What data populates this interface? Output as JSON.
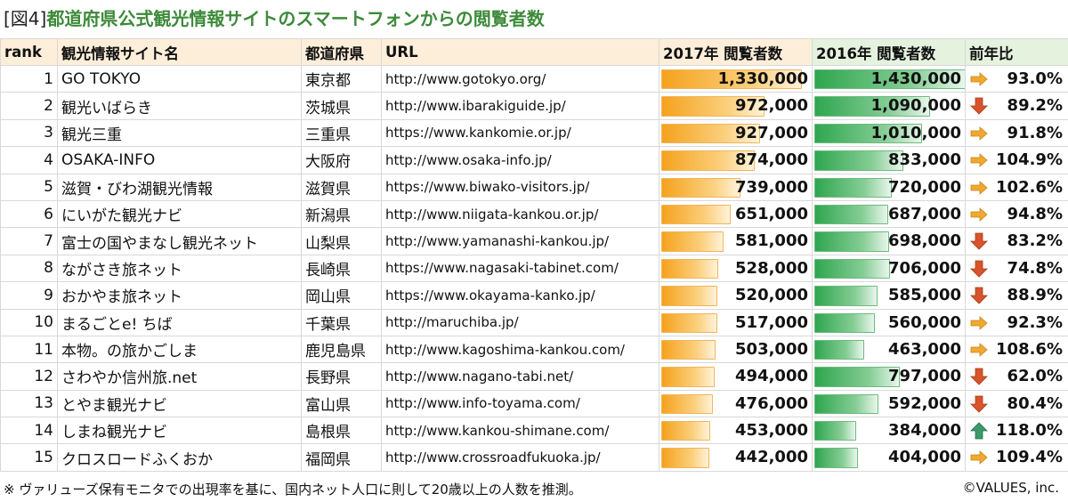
{
  "title": {
    "fig": "[図4]",
    "main": "都道府県公式観光情報サイトのスマートフォンからの閲覧者数"
  },
  "headers": {
    "rank": "rank",
    "name": "観光情報サイト名",
    "pref": "都道府県",
    "url": "URL",
    "y2017": "2017年 閲覧者数",
    "y2016": "2016年 閲覧者数",
    "ratio": "前年比"
  },
  "colors": {
    "title": "#3d8a3a",
    "bar2017": "#f5a21d",
    "bar2016": "#2fa64f",
    "up": "#3a9a6a",
    "flat": "#f0a830",
    "down": "#d9542b"
  },
  "scale_max": 1430000,
  "rows": [
    {
      "rank": "1",
      "name": "GO TOKYO",
      "pref": "東京都",
      "url": "http://www.gotokyo.org/",
      "v2017": 1330000,
      "v2017_label": "1,330,000",
      "v2016": 1430000,
      "v2016_label": "1,430,000",
      "ratio": "93.0%",
      "trend": "flat"
    },
    {
      "rank": "2",
      "name": "観光いばらき",
      "pref": "茨城県",
      "url": "http://www.ibarakiguide.jp/",
      "v2017": 972000,
      "v2017_label": "972,000",
      "v2016": 1090000,
      "v2016_label": "1,090,000",
      "ratio": "89.2%",
      "trend": "down"
    },
    {
      "rank": "3",
      "name": "観光三重",
      "pref": "三重県",
      "url": "https://www.kankomie.or.jp/",
      "v2017": 927000,
      "v2017_label": "927,000",
      "v2016": 1010000,
      "v2016_label": "1,010,000",
      "ratio": "91.8%",
      "trend": "flat"
    },
    {
      "rank": "4",
      "name": "OSAKA-INFO",
      "pref": "大阪府",
      "url": "http://www.osaka-info.jp/",
      "v2017": 874000,
      "v2017_label": "874,000",
      "v2016": 833000,
      "v2016_label": "833,000",
      "ratio": "104.9%",
      "trend": "flat"
    },
    {
      "rank": "5",
      "name": "滋賀・びわ湖観光情報",
      "pref": "滋賀県",
      "url": "https://www.biwako-visitors.jp/",
      "v2017": 739000,
      "v2017_label": "739,000",
      "v2016": 720000,
      "v2016_label": "720,000",
      "ratio": "102.6%",
      "trend": "flat"
    },
    {
      "rank": "6",
      "name": "にいがた観光ナビ",
      "pref": "新潟県",
      "url": "http://www.niigata-kankou.or.jp/",
      "v2017": 651000,
      "v2017_label": "651,000",
      "v2016": 687000,
      "v2016_label": "687,000",
      "ratio": "94.8%",
      "trend": "flat"
    },
    {
      "rank": "7",
      "name": "富士の国やまなし観光ネット",
      "pref": "山梨県",
      "url": "http://www.yamanashi-kankou.jp/",
      "v2017": 581000,
      "v2017_label": "581,000",
      "v2016": 698000,
      "v2016_label": "698,000",
      "ratio": "83.2%",
      "trend": "down"
    },
    {
      "rank": "8",
      "name": "ながさき旅ネット",
      "pref": "長崎県",
      "url": "https://www.nagasaki-tabinet.com/",
      "v2017": 528000,
      "v2017_label": "528,000",
      "v2016": 706000,
      "v2016_label": "706,000",
      "ratio": "74.8%",
      "trend": "down"
    },
    {
      "rank": "9",
      "name": "おかやま旅ネット",
      "pref": "岡山県",
      "url": "https://www.okayama-kanko.jp/",
      "v2017": 520000,
      "v2017_label": "520,000",
      "v2016": 585000,
      "v2016_label": "585,000",
      "ratio": "88.9%",
      "trend": "down"
    },
    {
      "rank": "10",
      "name": "まるごとe! ちば",
      "pref": "千葉県",
      "url": "http://maruchiba.jp/",
      "v2017": 517000,
      "v2017_label": "517,000",
      "v2016": 560000,
      "v2016_label": "560,000",
      "ratio": "92.3%",
      "trend": "flat"
    },
    {
      "rank": "11",
      "name": "本物。の旅かごしま",
      "pref": "鹿児島県",
      "url": "http://www.kagoshima-kankou.com/",
      "v2017": 503000,
      "v2017_label": "503,000",
      "v2016": 463000,
      "v2016_label": "463,000",
      "ratio": "108.6%",
      "trend": "flat"
    },
    {
      "rank": "12",
      "name": "さわやか信州旅.net",
      "pref": "長野県",
      "url": "http://www.nagano-tabi.net/",
      "v2017": 494000,
      "v2017_label": "494,000",
      "v2016": 797000,
      "v2016_label": "797,000",
      "ratio": "62.0%",
      "trend": "down"
    },
    {
      "rank": "13",
      "name": "とやま観光ナビ",
      "pref": "富山県",
      "url": "http://www.info-toyama.com/",
      "v2017": 476000,
      "v2017_label": "476,000",
      "v2016": 592000,
      "v2016_label": "592,000",
      "ratio": "80.4%",
      "trend": "down"
    },
    {
      "rank": "14",
      "name": "しまね観光ナビ",
      "pref": "島根県",
      "url": "http://www.kankou-shimane.com/",
      "v2017": 453000,
      "v2017_label": "453,000",
      "v2016": 384000,
      "v2016_label": "384,000",
      "ratio": "118.0%",
      "trend": "up"
    },
    {
      "rank": "15",
      "name": "クロスロードふくおか",
      "pref": "福岡県",
      "url": "http://www.crossroadfukuoka.jp/",
      "v2017": 442000,
      "v2017_label": "442,000",
      "v2016": 404000,
      "v2016_label": "404,000",
      "ratio": "109.4%",
      "trend": "flat"
    }
  ],
  "footer": {
    "note": "※ ヴァリューズ保有モニタでの出現率を基に、国内ネット人口に則して20歳以上の人数を推測。",
    "copyright": "©VALUES, inc."
  }
}
